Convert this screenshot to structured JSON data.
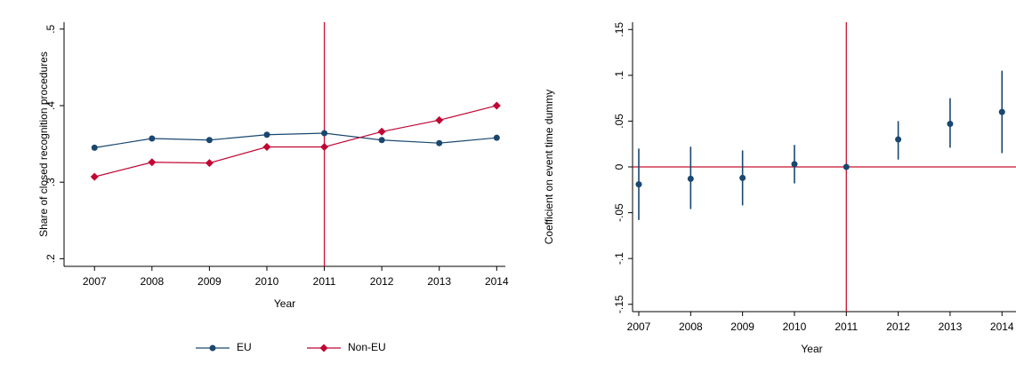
{
  "chart_data": [
    {
      "type": "line",
      "ylabel": "Share of closed recognition procedures",
      "xlabel": "Year",
      "x": [
        2007,
        2008,
        2009,
        2010,
        2011,
        2012,
        2013,
        2014
      ],
      "series": [
        {
          "name": "EU",
          "color": "#1a476f",
          "marker": "circle",
          "values": [
            0.345,
            0.357,
            0.355,
            0.362,
            0.364,
            0.355,
            0.351,
            0.358
          ]
        },
        {
          "name": "Non-EU",
          "color": "#c10534",
          "marker": "diamond",
          "values": [
            0.307,
            0.326,
            0.325,
            0.346,
            0.346,
            0.366,
            0.381,
            0.4
          ]
        }
      ],
      "xlim": [
        2006.47,
        2014.15
      ],
      "xticks": [
        2007,
        2008,
        2009,
        2010,
        2011,
        2012,
        2013,
        2014
      ],
      "ylim": [
        0.19,
        0.509
      ],
      "yticks": [
        {
          "value": 0.2,
          "label": ".2"
        },
        {
          "value": 0.3,
          "label": ".3"
        },
        {
          "value": 0.4,
          "label": ".4"
        },
        {
          "value": 0.5,
          "label": ".5"
        }
      ],
      "xline": 2011,
      "refcolor": "#c8102e",
      "legend": "bottom"
    },
    {
      "type": "errorbar",
      "ylabel": "Coefficient on event time dummy",
      "xlabel": "Year",
      "x": [
        2007,
        2008,
        2009,
        2010,
        2011,
        2012,
        2013,
        2014
      ],
      "series": [
        {
          "color": "#1a476f",
          "values": [
            -0.019,
            -0.013,
            -0.012,
            0.003,
            0,
            0.03,
            0.047,
            0.06
          ],
          "ci_low": [
            -0.058,
            -0.046,
            -0.042,
            -0.018,
            null,
            0.008,
            0.021,
            0.015
          ],
          "ci_high": [
            0.02,
            0.022,
            0.018,
            0.024,
            null,
            0.05,
            0.075,
            0.105
          ]
        }
      ],
      "xlim": [
        2006.88,
        2014.27
      ],
      "xticks": [
        2007,
        2008,
        2009,
        2010,
        2011,
        2012,
        2013,
        2014
      ],
      "ylim": [
        -0.158,
        0.158
      ],
      "yticks": [
        {
          "value": -0.15,
          "label": "-.15"
        },
        {
          "value": -0.1,
          "label": "-.1"
        },
        {
          "value": -0.05,
          "label": "-.05"
        },
        0,
        {
          "value": 0.05,
          "label": ".05"
        },
        {
          "value": 0.1,
          "label": ".1"
        },
        {
          "value": 0.15,
          "label": ".15"
        }
      ],
      "xline": 2011,
      "yline": 0,
      "refcolor": "#c8102e"
    }
  ]
}
